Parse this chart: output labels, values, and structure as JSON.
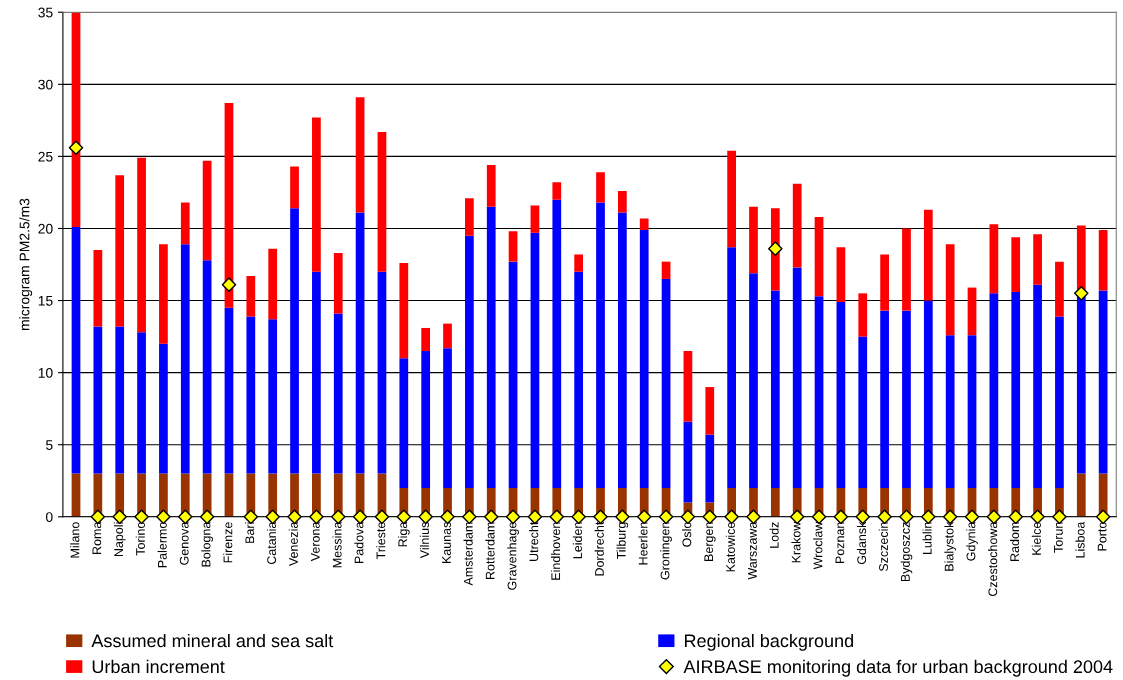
{
  "chart_data": {
    "type": "bar",
    "stacked": true,
    "ylabel": "microgram PM2.5/m3",
    "categories": [
      "Milano",
      "Roma",
      "Napoli",
      "Torino",
      "Palermo",
      "Genova",
      "Bologna",
      "Firenze",
      "Bari",
      "Catania",
      "Venezia",
      "Verona",
      "Messina",
      "Padova",
      "Trieste",
      "Riga",
      "Vilnius",
      "Kaunas",
      "Amsterdam",
      "Rotterdam",
      "Gravenhage",
      "Utrecht",
      "Eindhoven",
      "Leiden",
      "Dordrecht",
      "Tilburg",
      "Heerlen",
      "Groningen",
      "Oslo",
      "Bergen",
      "Katowice",
      "Warszawa",
      "Lodz",
      "Krakow",
      "Wroclaw",
      "Poznan",
      "Gdansk",
      "Szczecin",
      "Bydgoszcz",
      "Lublin",
      "Bialystok",
      "Gdynia",
      "Czestochowa",
      "Radom",
      "Kielce",
      "Torun",
      "Lisboa",
      "Porto"
    ],
    "series": [
      {
        "name": "Assumed mineral and sea salt",
        "color": "#993300",
        "values": [
          3,
          3,
          3,
          3,
          3,
          3,
          3,
          3,
          3,
          3,
          3,
          3,
          3,
          3,
          3,
          2,
          2,
          2,
          2,
          2,
          2,
          2,
          2,
          2,
          2,
          2,
          2,
          2,
          1,
          1,
          2,
          2,
          2,
          2,
          2,
          2,
          2,
          2,
          2,
          2,
          2,
          2,
          2,
          2,
          2,
          2,
          3,
          3
        ]
      },
      {
        "name": "Regional background",
        "color": "#0000ff",
        "values": [
          17.1,
          10.2,
          10.2,
          9.8,
          9.0,
          15.9,
          14.8,
          11.5,
          10.9,
          10.7,
          18.4,
          14.0,
          11.1,
          18.1,
          14.0,
          9.0,
          9.5,
          9.7,
          17.5,
          19.5,
          15.7,
          17.7,
          20.0,
          15.0,
          19.8,
          19.1,
          17.9,
          14.5,
          5.6,
          4.7,
          16.7,
          14.9,
          13.7,
          15.3,
          13.3,
          12.9,
          10.5,
          12.3,
          12.3,
          13.0,
          10.6,
          10.6,
          13.5,
          13.6,
          14.1,
          11.9,
          12.3,
          12.7
        ]
      },
      {
        "name": "Urban increment",
        "color": "#ff0000",
        "values": [
          14.9,
          5.3,
          10.5,
          12.1,
          6.9,
          2.9,
          6.9,
          14.2,
          2.8,
          4.9,
          2.9,
          10.7,
          4.2,
          8.0,
          9.7,
          6.6,
          1.6,
          1.7,
          2.6,
          2.9,
          2.1,
          1.9,
          1.2,
          1.2,
          2.1,
          1.5,
          0.8,
          1.2,
          4.9,
          3.3,
          6.7,
          4.6,
          5.7,
          5.8,
          5.5,
          3.8,
          3.0,
          3.9,
          5.7,
          6.3,
          6.3,
          3.3,
          4.8,
          3.8,
          3.5,
          3.8,
          4.9,
          4.2
        ]
      },
      {
        "name": "AIRBASE monitoring data for urban background 2004",
        "type": "scatter",
        "color": "#ffff00",
        "marker": "diamond",
        "values": [
          25.6,
          0,
          0,
          0,
          0,
          0,
          0,
          16.1,
          0,
          0,
          0,
          0,
          0,
          0,
          0,
          0,
          0,
          0,
          0,
          0,
          0,
          0,
          0,
          0,
          0,
          0,
          0,
          0,
          0,
          0,
          0,
          0,
          18.6,
          0,
          0,
          0,
          0,
          0,
          0,
          0,
          0,
          0,
          0,
          0,
          0,
          0,
          15.5,
          0
        ]
      }
    ],
    "ylim": [
      0,
      35
    ],
    "yticks": [
      0,
      5,
      10,
      15,
      20,
      25,
      30,
      35
    ],
    "grid": "y",
    "legend": "bottom"
  }
}
